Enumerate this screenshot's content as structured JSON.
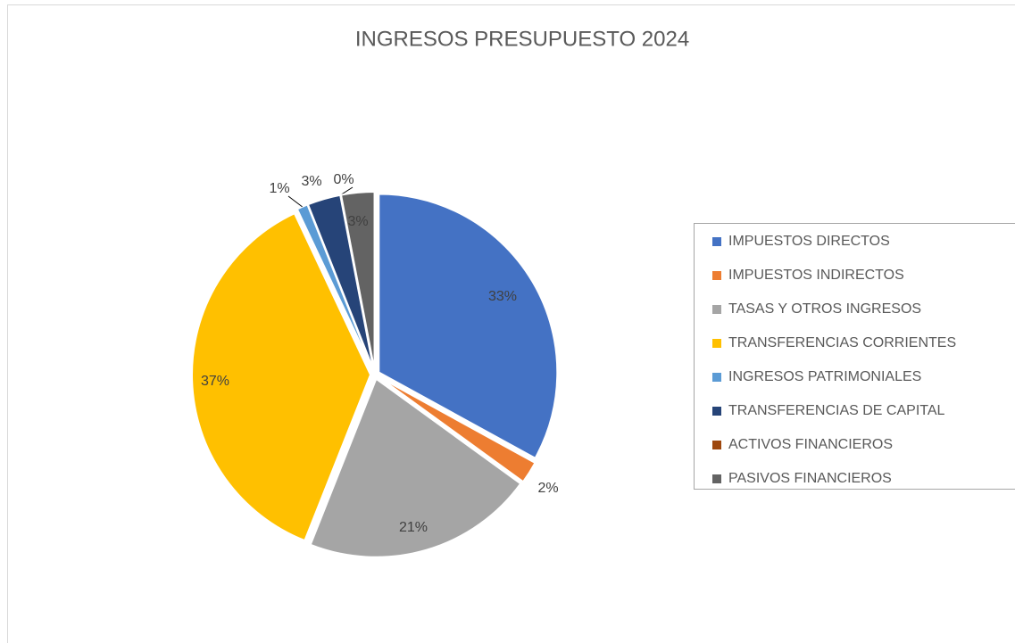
{
  "chart_data": {
    "type": "pie",
    "title": "INGRESOS PRESUPUESTO 2024",
    "categories": [
      "IMPUESTOS DIRECTOS",
      "IMPUESTOS INDIRECTOS",
      "TASAS Y OTROS INGRESOS",
      "TRANSFERENCIAS CORRIENTES",
      "INGRESOS PATRIMONIALES",
      "TRANSFERENCIAS DE CAPITAL",
      "ACTIVOS FINANCIEROS",
      "PASIVOS FINANCIEROS"
    ],
    "values": [
      33,
      2,
      21,
      37,
      1,
      3,
      0,
      3
    ],
    "value_labels": [
      "33%",
      "2%",
      "21%",
      "37%",
      "1%",
      "3%",
      "0%",
      "3%"
    ],
    "colors": [
      "#4472c4",
      "#ed7d31",
      "#a5a5a5",
      "#ffc000",
      "#5b9bd5",
      "#264478",
      "#9e480e",
      "#636363"
    ],
    "legend": "right"
  }
}
